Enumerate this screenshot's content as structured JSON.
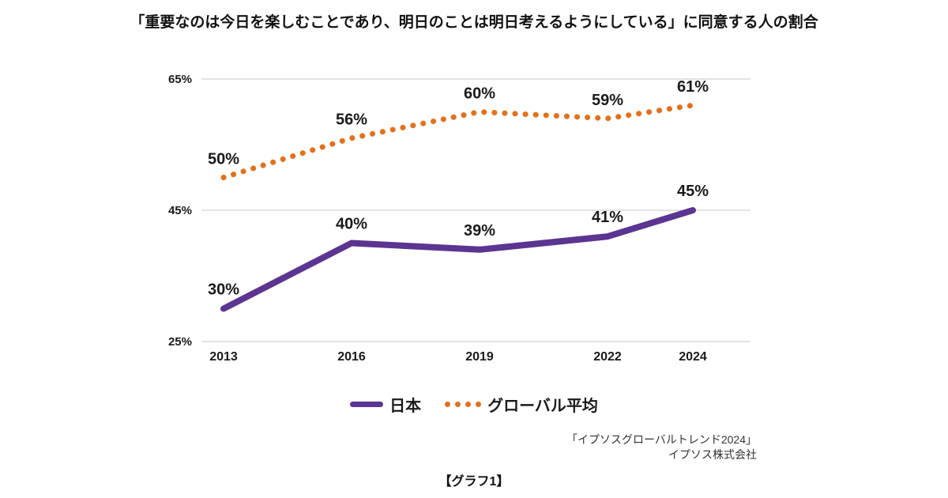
{
  "title": "「重要なのは今日を楽しむことであり、明日のことは明日考えるようにしている」に同意する人の割合",
  "chart_data": {
    "type": "line",
    "x": [
      2013,
      2016,
      2019,
      2022,
      2024
    ],
    "x_tick_labels": [
      "2013",
      "2016",
      "2019",
      "2022",
      "2024"
    ],
    "series": [
      {
        "name": "日本",
        "values": [
          30,
          40,
          39,
          41,
          45
        ],
        "color": "#5b3591",
        "style": "solid"
      },
      {
        "name": "グローバル平均",
        "values": [
          50,
          56,
          60,
          59,
          61
        ],
        "color": "#e2711d",
        "style": "dotted"
      }
    ],
    "ylim": [
      25,
      65
    ],
    "yticks": [
      25,
      45,
      65
    ],
    "ytick_labels": [
      "25%",
      "45%",
      "65%"
    ],
    "grid": true,
    "grid_color": "#c6c6c6",
    "legend_position": "bottom",
    "data_labels": true
  },
  "legend": {
    "items": [
      {
        "label": "日本",
        "color": "#5b3591"
      },
      {
        "label": "グローバル平均",
        "color": "#e2711d"
      }
    ]
  },
  "source": {
    "line1": "「イプソスグローバルトレンド2024」",
    "line2": "イプソス株式会社"
  },
  "caption": "【グラフ1】"
}
